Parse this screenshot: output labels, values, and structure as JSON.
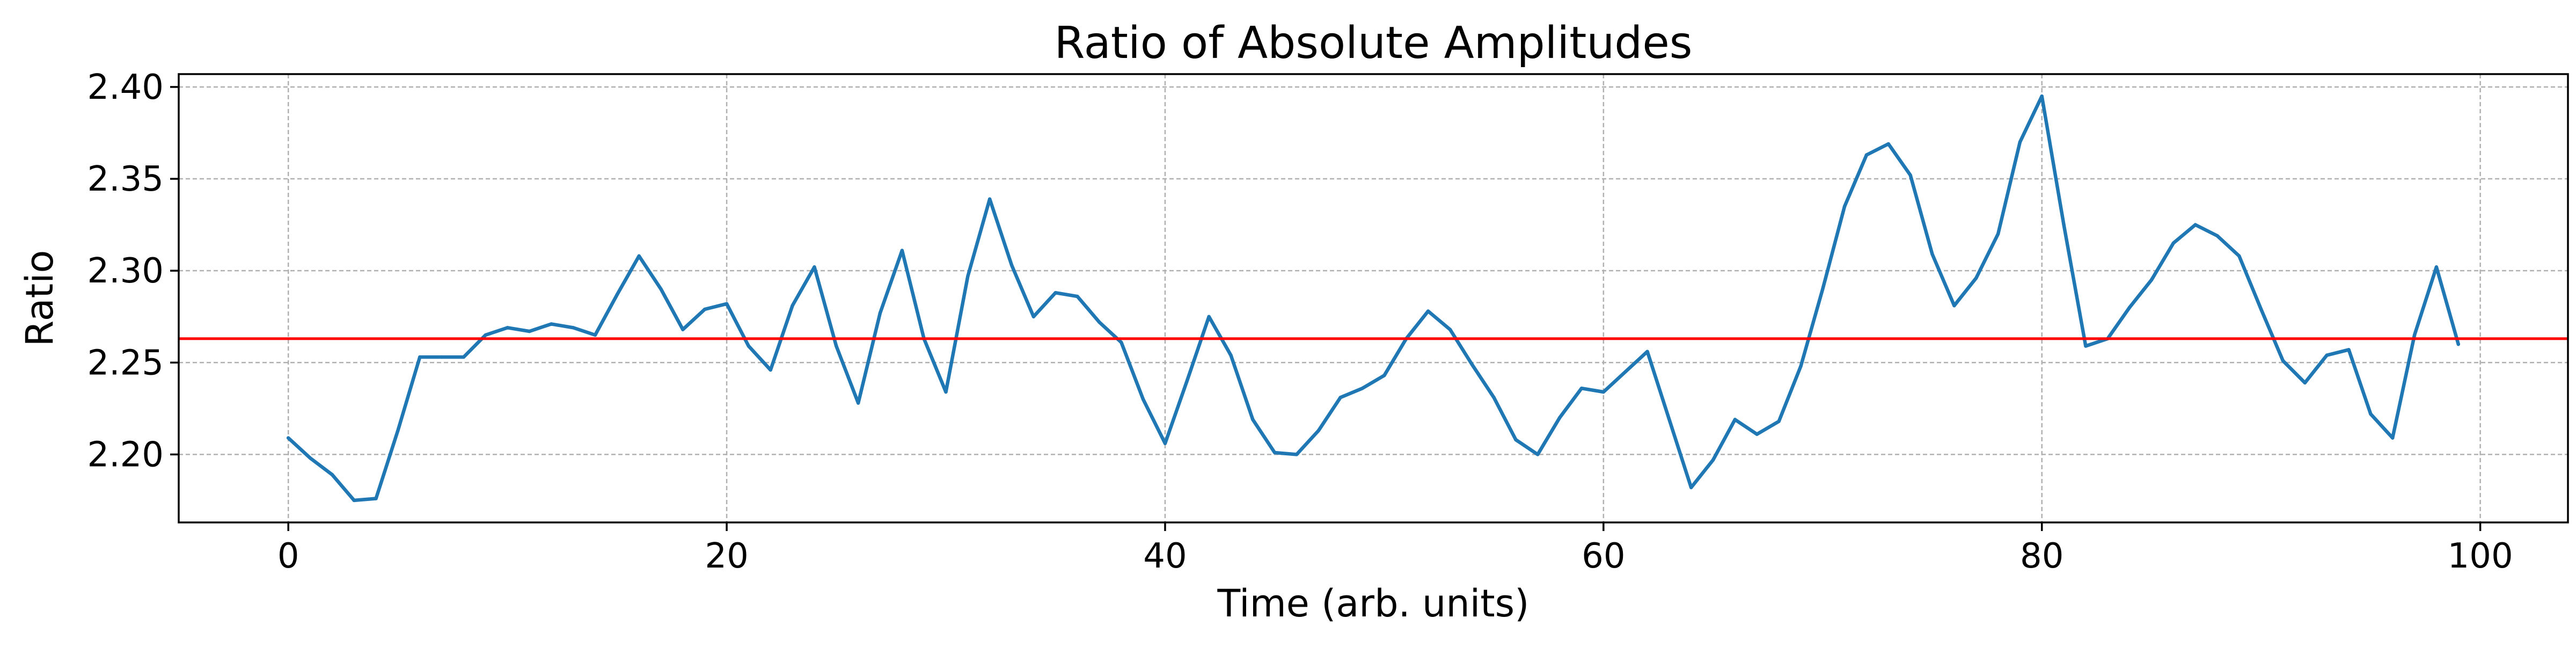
{
  "chart_data": {
    "type": "line",
    "title": "Ratio of Absolute Amplitudes",
    "xlabel": "Time (arb. units)",
    "ylabel": "Ratio",
    "xlim": [
      -5,
      104
    ],
    "ylim": [
      2.163,
      2.407
    ],
    "xticks": [
      0,
      20,
      40,
      60,
      80,
      100
    ],
    "xtick_labels": [
      "0",
      "20",
      "40",
      "60",
      "80",
      "100"
    ],
    "yticks": [
      2.2,
      2.25,
      2.3,
      2.35,
      2.4
    ],
    "ytick_labels": [
      "2.20",
      "2.25",
      "2.30",
      "2.35",
      "2.40"
    ],
    "grid": true,
    "series": [
      {
        "color": "#1f77b4",
        "x": [
          0,
          1,
          2,
          3,
          4,
          5,
          6,
          7,
          8,
          9,
          10,
          11,
          12,
          13,
          14,
          15,
          16,
          17,
          18,
          19,
          20,
          21,
          22,
          23,
          24,
          25,
          26,
          27,
          28,
          29,
          30,
          31,
          32,
          33,
          34,
          35,
          36,
          37,
          38,
          39,
          40,
          41,
          42,
          43,
          44,
          45,
          46,
          47,
          48,
          49,
          50,
          51,
          52,
          53,
          54,
          55,
          56,
          57,
          58,
          59,
          60,
          61,
          62,
          63,
          64,
          65,
          66,
          67,
          68,
          69,
          70,
          71,
          72,
          73,
          74,
          75,
          76,
          77,
          78,
          79,
          80,
          81,
          82,
          83,
          84,
          85,
          86,
          87,
          88,
          89,
          90,
          91,
          92,
          93,
          94,
          95,
          96,
          97,
          98,
          99
        ],
        "y": [
          2.209,
          2.198,
          2.189,
          2.175,
          2.176,
          2.213,
          2.253,
          2.253,
          2.253,
          2.265,
          2.269,
          2.267,
          2.271,
          2.269,
          2.265,
          2.287,
          2.308,
          2.29,
          2.268,
          2.279,
          2.282,
          2.259,
          2.246,
          2.281,
          2.302,
          2.259,
          2.228,
          2.277,
          2.311,
          2.263,
          2.234,
          2.297,
          2.339,
          2.303,
          2.275,
          2.288,
          2.286,
          2.272,
          2.261,
          2.23,
          2.206,
          2.24,
          2.275,
          2.254,
          2.219,
          2.201,
          2.2,
          2.213,
          2.231,
          2.236,
          2.243,
          2.263,
          2.278,
          2.268,
          2.249,
          2.231,
          2.208,
          2.2,
          2.22,
          2.236,
          2.234,
          2.245,
          2.256,
          2.219,
          2.182,
          2.197,
          2.219,
          2.211,
          2.218,
          2.248,
          2.29,
          2.335,
          2.363,
          2.369,
          2.352,
          2.309,
          2.281,
          2.296,
          2.32,
          2.37,
          2.395,
          2.325,
          2.259,
          2.263,
          2.28,
          2.295,
          2.315,
          2.325,
          2.319,
          2.308,
          2.279,
          2.251,
          2.239,
          2.254,
          2.257,
          2.222,
          2.209,
          2.265,
          2.302,
          2.26
        ]
      }
    ],
    "hline": {
      "y": 2.263,
      "color": "#ff0000"
    }
  }
}
